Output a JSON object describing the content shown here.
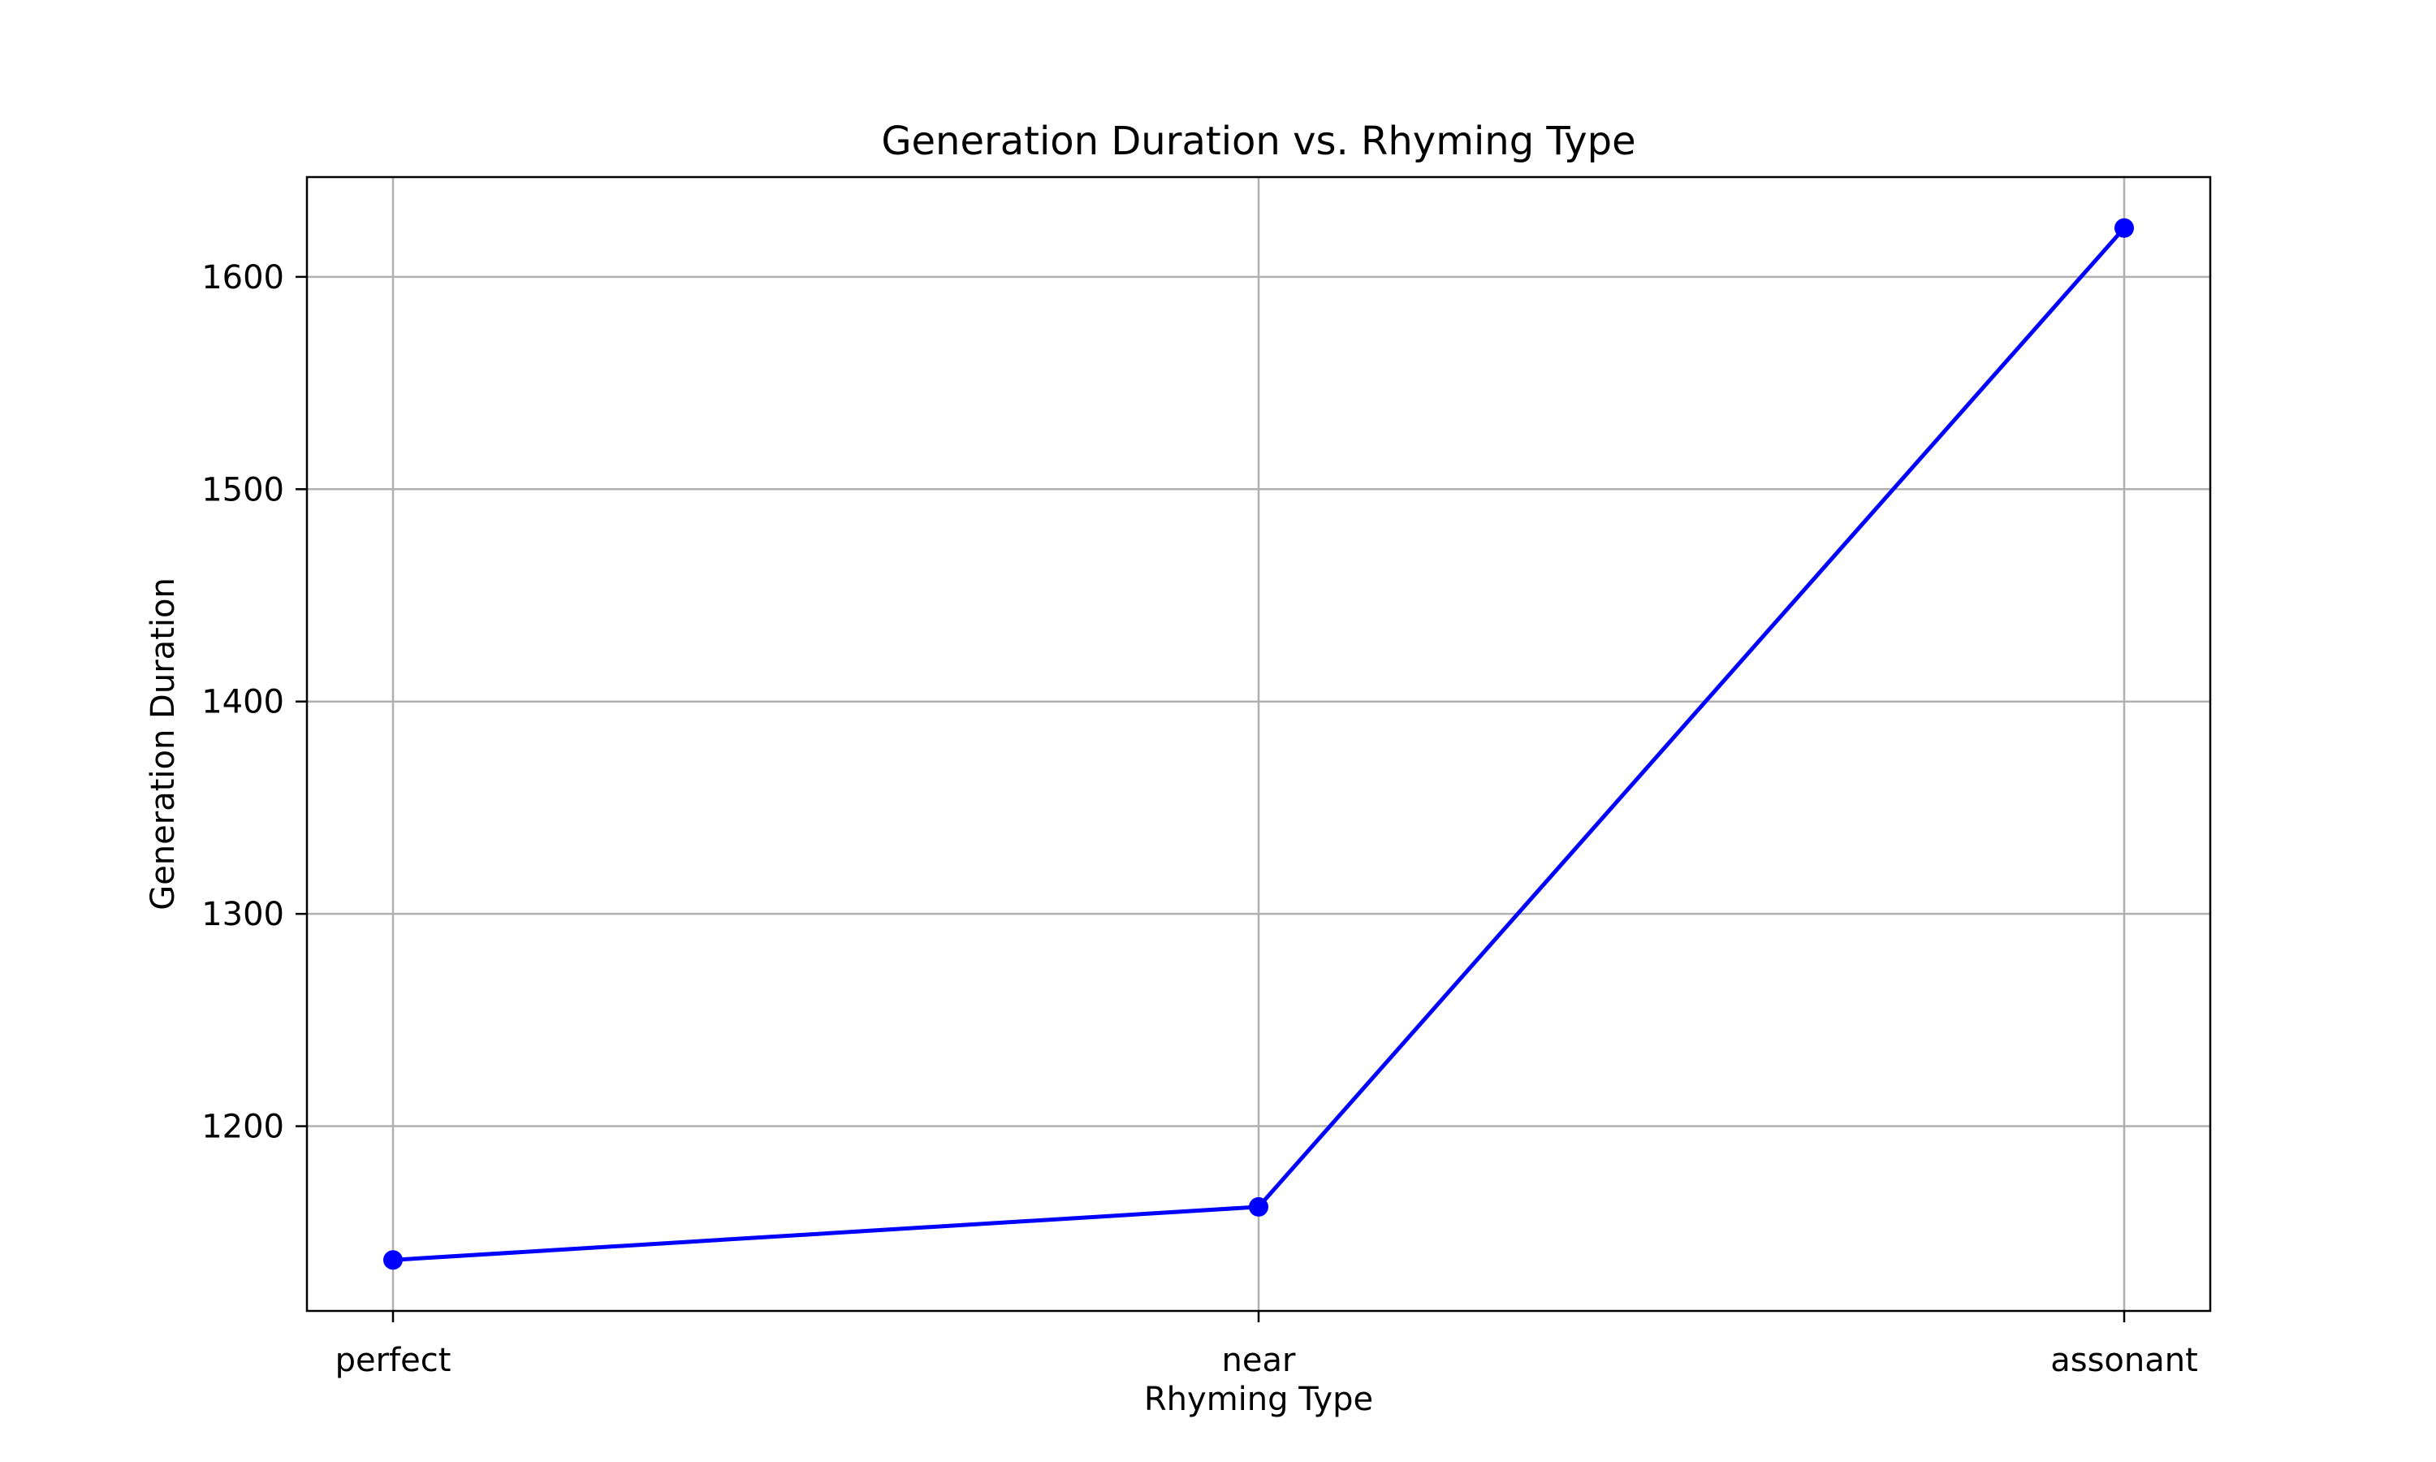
{
  "chart_data": {
    "type": "line",
    "title": "Generation Duration vs. Rhyming Type",
    "xlabel": "Rhyming Type",
    "ylabel": "Generation Duration",
    "categories": [
      "perfect",
      "near",
      "assonant"
    ],
    "series": [
      {
        "values": [
          1137,
          1162,
          1623
        ],
        "color": "#0000ff",
        "marker": "circle"
      }
    ],
    "ylim": [
      1113,
      1647
    ],
    "yticks": [
      1200,
      1300,
      1400,
      1500,
      1600
    ],
    "grid": true
  }
}
